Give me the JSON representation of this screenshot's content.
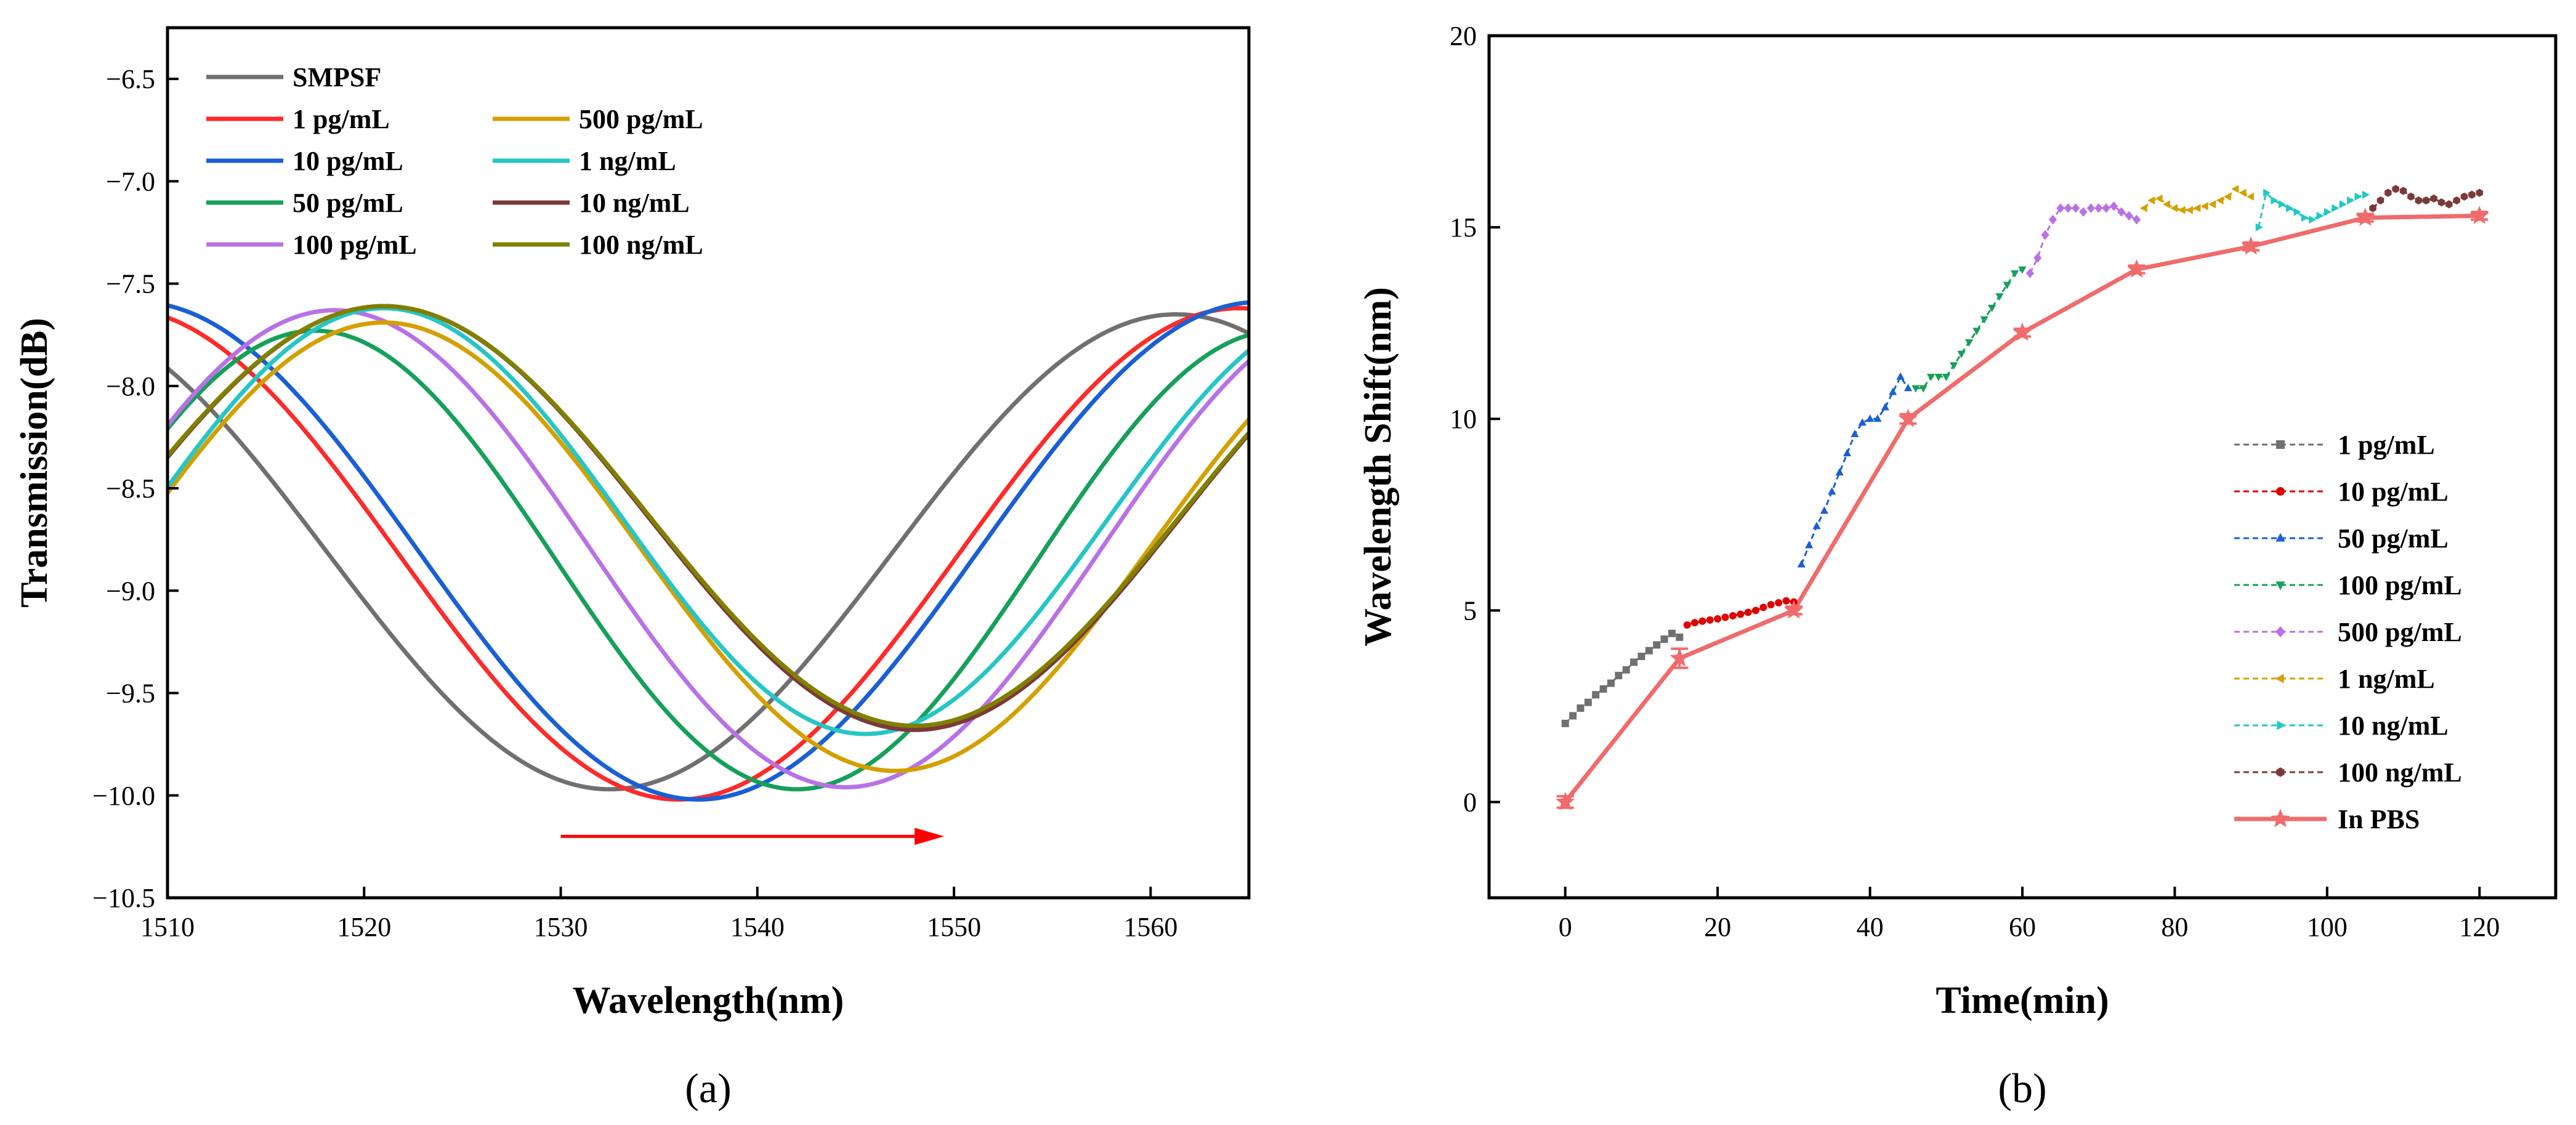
{
  "chart_data": [
    {
      "type": "line",
      "panel_label": "(a)",
      "xlabel": "Wavelength(nm)",
      "ylabel": "Transmission(dB)",
      "xlim": [
        1510,
        1565
      ],
      "ylim": [
        -10.5,
        -6.25
      ],
      "xticks": [
        1510,
        1520,
        1530,
        1540,
        1550,
        1560
      ],
      "yticks": [
        -10.5,
        -10.0,
        -9.5,
        -9.0,
        -8.5,
        -8.0,
        -7.5,
        -7.0,
        -6.5
      ],
      "grid": false,
      "legend_position": "top-left",
      "annotation": {
        "type": "arrow",
        "color": "#ff0000",
        "from": [
          1530,
          -10.2
        ],
        "to": [
          1549.5,
          -10.2
        ]
      },
      "series": [
        {
          "name": "SMPSF",
          "color": "#707070",
          "dip_center": 1532.5,
          "dip_min": -9.97,
          "max_value": -7.65,
          "half_period": 28.8
        },
        {
          "name": "1 pg/mL",
          "color": "#ff2a2a",
          "dip_center": 1536.0,
          "dip_min": -10.02,
          "max_value": -7.62,
          "half_period": 28.5
        },
        {
          "name": "10 pg/mL",
          "color": "#1a5fd6",
          "dip_center": 1537.0,
          "dip_min": -10.02,
          "max_value": -7.59,
          "half_period": 28.5
        },
        {
          "name": "50 pg/mL",
          "color": "#16a05a",
          "dip_center": 1542.0,
          "dip_min": -9.97,
          "max_value": -7.73,
          "half_period": 24.5
        },
        {
          "name": "100 pg/mL",
          "color": "#b872e6",
          "dip_center": 1544.5,
          "dip_min": -9.96,
          "max_value": -7.63,
          "half_period": 26.0
        },
        {
          "name": "500 pg/mL",
          "color": "#d4a000",
          "dip_center": 1547.0,
          "dip_min": -9.88,
          "max_value": -7.69,
          "half_period": 26.0
        },
        {
          "name": "1 ng/mL",
          "color": "#26c6c6",
          "dip_center": 1545.5,
          "dip_min": -9.7,
          "max_value": -7.62,
          "half_period": 24.5
        },
        {
          "name": "10 ng/mL",
          "color": "#7b3a3a",
          "dip_center": 1548.0,
          "dip_min": -9.68,
          "max_value": -7.61,
          "half_period": 27.0
        },
        {
          "name": "100 ng/mL",
          "color": "#808000",
          "dip_center": 1548.0,
          "dip_min": -9.66,
          "max_value": -7.61,
          "half_period": 27.0
        }
      ]
    },
    {
      "type": "line",
      "panel_label": "(b)",
      "xlabel": "Time(min)",
      "ylabel": "Wavelength Shift(nm)",
      "xlim": [
        -10,
        130
      ],
      "ylim": [
        -2.5,
        20
      ],
      "xticks": [
        0,
        20,
        40,
        60,
        80,
        100,
        120
      ],
      "yticks": [
        0,
        5,
        10,
        15,
        20
      ],
      "grid": false,
      "legend_position": "bottom-right",
      "series": [
        {
          "name": "1 pg/mL",
          "color": "#707070",
          "marker": "square",
          "x": [
            0,
            1,
            2,
            3,
            4,
            5,
            6,
            7,
            8,
            9,
            10,
            11,
            12,
            13,
            14,
            15
          ],
          "y": [
            2.05,
            2.25,
            2.45,
            2.6,
            2.8,
            2.95,
            3.1,
            3.3,
            3.45,
            3.65,
            3.8,
            3.95,
            4.1,
            4.25,
            4.4,
            4.3
          ]
        },
        {
          "name": "10 pg/mL",
          "color": "#e00000",
          "marker": "circle",
          "x": [
            16,
            17,
            18,
            19,
            20,
            21,
            22,
            23,
            24,
            25,
            26,
            27,
            28,
            29,
            30
          ],
          "y": [
            4.62,
            4.68,
            4.72,
            4.75,
            4.78,
            4.82,
            4.86,
            4.9,
            4.95,
            5.0,
            5.08,
            5.15,
            5.2,
            5.25,
            5.22
          ]
        },
        {
          "name": "50 pg/mL",
          "color": "#1a5fd6",
          "marker": "triangle-up",
          "x": [
            31,
            32,
            33,
            34,
            35,
            36,
            37,
            38,
            39,
            40,
            41,
            42,
            43,
            44,
            45
          ],
          "y": [
            6.2,
            6.7,
            7.2,
            7.6,
            8.1,
            8.6,
            9.1,
            9.6,
            9.9,
            10.0,
            10.0,
            10.3,
            10.7,
            11.1,
            10.8
          ]
        },
        {
          "name": "100 pg/mL",
          "color": "#16a05a",
          "marker": "triangle-down",
          "x": [
            46,
            47,
            48,
            49,
            50,
            51,
            52,
            53,
            54,
            55,
            56,
            57,
            58,
            59,
            60
          ],
          "y": [
            10.8,
            10.8,
            11.1,
            11.1,
            11.1,
            11.4,
            11.7,
            12.0,
            12.3,
            12.6,
            12.9,
            13.2,
            13.5,
            13.8,
            13.9
          ]
        },
        {
          "name": "500 pg/mL",
          "color": "#b872e6",
          "marker": "diamond",
          "x": [
            61,
            62,
            63,
            64,
            65,
            66,
            67,
            68,
            69,
            70,
            71,
            72,
            73,
            74,
            75
          ],
          "y": [
            13.8,
            14.2,
            14.8,
            15.2,
            15.5,
            15.5,
            15.5,
            15.4,
            15.5,
            15.5,
            15.5,
            15.55,
            15.4,
            15.3,
            15.2
          ]
        },
        {
          "name": "1 ng/mL",
          "color": "#d4a000",
          "marker": "triangle-left",
          "x": [
            76,
            77,
            78,
            79,
            80,
            81,
            82,
            83,
            84,
            85,
            86,
            87,
            88,
            89,
            90
          ],
          "y": [
            15.5,
            15.7,
            15.75,
            15.6,
            15.5,
            15.45,
            15.45,
            15.5,
            15.55,
            15.6,
            15.7,
            15.8,
            16.0,
            15.9,
            15.8
          ]
        },
        {
          "name": "10 ng/mL",
          "color": "#26c6c6",
          "marker": "triangle-right",
          "x": [
            91,
            92,
            93,
            94,
            95,
            96,
            97,
            98,
            99,
            100,
            101,
            102,
            103,
            104,
            105
          ],
          "y": [
            15.0,
            15.9,
            15.7,
            15.6,
            15.5,
            15.4,
            15.25,
            15.2,
            15.3,
            15.4,
            15.5,
            15.6,
            15.7,
            15.8,
            15.85
          ]
        },
        {
          "name": "100 ng/mL",
          "color": "#7b3a3a",
          "marker": "hexagon",
          "x": [
            106,
            107,
            108,
            109,
            110,
            111,
            112,
            113,
            114,
            115,
            116,
            117,
            118,
            119,
            120
          ],
          "y": [
            15.5,
            15.7,
            15.9,
            16.0,
            15.95,
            15.8,
            15.7,
            15.7,
            15.75,
            15.65,
            15.6,
            15.7,
            15.8,
            15.85,
            15.9
          ]
        },
        {
          "name": "In PBS",
          "color": "#f06b6b",
          "marker": "star",
          "x": [
            0,
            15,
            30,
            45,
            60,
            75,
            90,
            105,
            120
          ],
          "y": [
            0.0,
            3.75,
            5.0,
            10.0,
            12.25,
            13.9,
            14.5,
            15.25,
            15.3
          ],
          "yerr": [
            0.15,
            0.25,
            0.1,
            0.12,
            0.1,
            0.1,
            0.1,
            0.1,
            0.1
          ]
        }
      ]
    }
  ]
}
